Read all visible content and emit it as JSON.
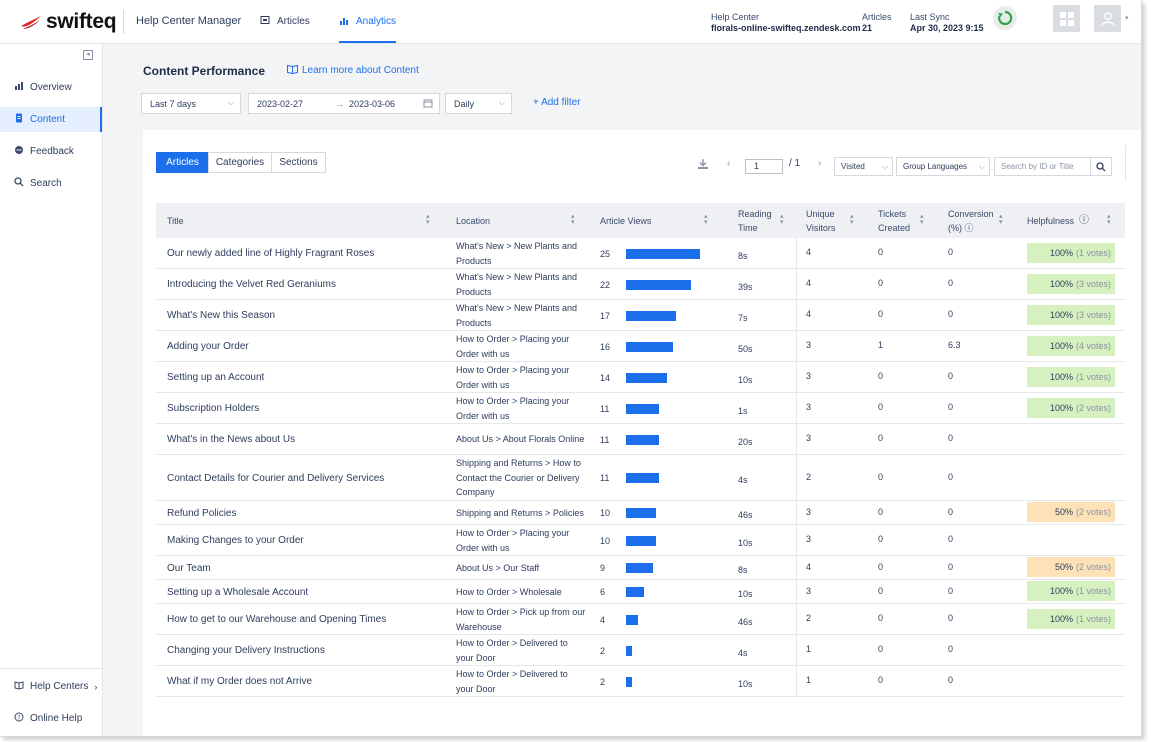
{
  "topbar": {
    "logo_text": "swifteq",
    "app_title": "Help Center Manager",
    "nav": [
      {
        "label": "Articles",
        "icon": "articles-icon"
      },
      {
        "label": "Analytics",
        "icon": "analytics-icon"
      }
    ],
    "help_center_label": "Help Center",
    "help_center_value": "florals-online-swifteq.zendesk.com",
    "articles_label": "Articles",
    "articles_value": "21",
    "last_sync_label": "Last Sync",
    "last_sync_value": "Apr 30, 2023 9:15"
  },
  "sidebar": {
    "items": [
      {
        "label": "Overview",
        "icon": "bar-chart-icon"
      },
      {
        "label": "Content",
        "icon": "document-icon"
      },
      {
        "label": "Feedback",
        "icon": "chat-icon"
      },
      {
        "label": "Search",
        "icon": "search-icon"
      }
    ],
    "bottom": [
      {
        "label": "Help Centers",
        "icon": "book-icon"
      },
      {
        "label": "Online Help",
        "icon": "help-circle-icon"
      }
    ]
  },
  "main": {
    "title": "Content Performance",
    "learn_link": "Learn more about Content",
    "filters": {
      "range": "Last 7 days",
      "date_from": "2023-02-27",
      "date_to": "2023-03-06",
      "granularity": "Daily",
      "add_filter": "+ Add filter"
    }
  },
  "card": {
    "tabs": [
      "Articles",
      "Categories",
      "Sections"
    ],
    "pager": {
      "current": "1",
      "total": "/ 1"
    },
    "visited_select": "Visited",
    "group_select": "Group Languages",
    "search_placeholder": "Search by ID or Title"
  },
  "table": {
    "headers": {
      "title": "Title",
      "location": "Location",
      "views": "Article Views",
      "reading_1": "Reading",
      "reading_2": "Time",
      "unique_1": "Unique",
      "unique_2": "Visitors",
      "tickets_1": "Tickets",
      "tickets_2": "Created",
      "conv_1": "Conversion",
      "conv_2": "(%)",
      "helpfulness": "Helpfulness"
    },
    "rows": [
      {
        "title": "Our newly added line of Highly Fragrant Roses",
        "location": "What's New > New Plants and Products",
        "views": "25",
        "time": "8s",
        "visitors": "4",
        "tickets": "0",
        "conversion": "0",
        "help": "100%",
        "votes": "(1 votes)",
        "help_level": "good"
      },
      {
        "title": "Introducing the Velvet Red Geraniums",
        "location": "What's New > New Plants and Products",
        "views": "22",
        "time": "39s",
        "visitors": "4",
        "tickets": "0",
        "conversion": "0",
        "help": "100%",
        "votes": "(3 votes)",
        "help_level": "good"
      },
      {
        "title": "What's New this Season",
        "location": "What's New > New Plants and Products",
        "views": "17",
        "time": "7s",
        "visitors": "4",
        "tickets": "0",
        "conversion": "0",
        "help": "100%",
        "votes": "(3 votes)",
        "help_level": "good"
      },
      {
        "title": "Adding your Order",
        "location": "How to Order > Placing your Order with us",
        "views": "16",
        "time": "50s",
        "visitors": "3",
        "tickets": "1",
        "conversion": "6.3",
        "help": "100%",
        "votes": "(4 votes)",
        "help_level": "good"
      },
      {
        "title": "Setting up an Account",
        "location": "How to Order > Placing your Order with us",
        "views": "14",
        "time": "10s",
        "visitors": "3",
        "tickets": "0",
        "conversion": "0",
        "help": "100%",
        "votes": "(1 votes)",
        "help_level": "good"
      },
      {
        "title": "Subscription Holders",
        "location": "How to Order > Placing your Order with us",
        "views": "11",
        "time": "1s",
        "visitors": "3",
        "tickets": "0",
        "conversion": "0",
        "help": "100%",
        "votes": "(2 votes)",
        "help_level": "good"
      },
      {
        "title": "What's in the News about Us",
        "location": "About Us > About Florals Online",
        "views": "11",
        "time": "20s",
        "visitors": "3",
        "tickets": "0",
        "conversion": "0",
        "help": "",
        "votes": "",
        "help_level": "none"
      },
      {
        "title": "Contact Details for Courier and Delivery Services",
        "location": "Shipping and Returns > How to Contact the Courier or Delivery Company",
        "views": "11",
        "time": "4s",
        "visitors": "2",
        "tickets": "0",
        "conversion": "0",
        "help": "",
        "votes": "",
        "help_level": "none"
      },
      {
        "title": "Refund Policies",
        "location": "Shipping and Returns > Policies",
        "views": "10",
        "time": "46s",
        "visitors": "3",
        "tickets": "0",
        "conversion": "0",
        "help": "50%",
        "votes": "(2 votes)",
        "help_level": "mid"
      },
      {
        "title": "Making Changes to your Order",
        "location": "How to Order > Placing your Order with us",
        "views": "10",
        "time": "10s",
        "visitors": "3",
        "tickets": "0",
        "conversion": "0",
        "help": "",
        "votes": "",
        "help_level": "none"
      },
      {
        "title": "Our Team",
        "location": "About Us > Our Staff",
        "views": "9",
        "time": "8s",
        "visitors": "4",
        "tickets": "0",
        "conversion": "0",
        "help": "50%",
        "votes": "(2 votes)",
        "help_level": "mid"
      },
      {
        "title": "Setting up a Wholesale Account",
        "location": "How to Order > Wholesale",
        "views": "6",
        "time": "10s",
        "visitors": "3",
        "tickets": "0",
        "conversion": "0",
        "help": "100%",
        "votes": "(1 votes)",
        "help_level": "good"
      },
      {
        "title": "How to get to our Warehouse and Opening Times",
        "location": "How to Order > Pick up from our Warehouse",
        "views": "4",
        "time": "46s",
        "visitors": "2",
        "tickets": "0",
        "conversion": "0",
        "help": "100%",
        "votes": "(1 votes)",
        "help_level": "good"
      },
      {
        "title": "Changing your Delivery Instructions",
        "location": "How to Order > Delivered to your Door",
        "views": "2",
        "time": "4s",
        "visitors": "1",
        "tickets": "0",
        "conversion": "0",
        "help": "",
        "votes": "",
        "help_level": "none"
      },
      {
        "title": "What if my Order does not Arrive",
        "location": "How to Order > Delivered to your Door",
        "views": "2",
        "time": "10s",
        "visitors": "1",
        "tickets": "0",
        "conversion": "0",
        "help": "",
        "votes": "",
        "help_level": "none"
      }
    ]
  },
  "colors": {
    "accent": "#1c6fea",
    "help_good": "#d6f0c0",
    "help_mid": "#fde2b8",
    "logo_red": "#e0292b"
  }
}
